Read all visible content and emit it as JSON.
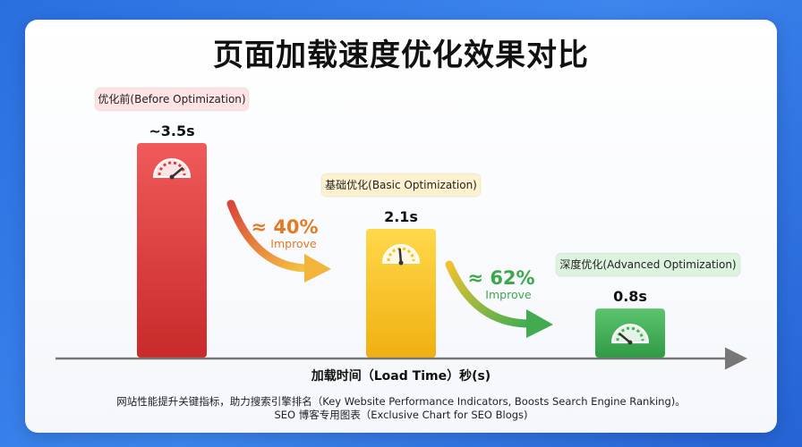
{
  "chart_data": {
    "type": "bar",
    "title": "页面加载速度优化效果对比",
    "xlabel": "加载时间（Load Time）秒(s)",
    "ylabel": "",
    "ylim": [
      0,
      3.5
    ],
    "categories": [
      "优化前(Before Optimization)",
      "基础优化(Basic Optimization)",
      "深度优化(Advanced Optimization)"
    ],
    "values": [
      3.5,
      2.1,
      0.8
    ],
    "value_labels": [
      "~3.5s",
      "2.1s",
      "0.8s"
    ],
    "annotations": [
      {
        "value": "≈ 40%",
        "text": "Improve",
        "color": "#e67a22"
      },
      {
        "value": "≈ 62%",
        "text": "Improve",
        "color": "#3da84a"
      }
    ],
    "colors": [
      "#e03b3b",
      "#f5c220",
      "#45b25a"
    ],
    "label_bg_colors": [
      "#fde3e3",
      "#fdf2cf",
      "#dcf3de"
    ]
  },
  "footer": {
    "line1": "网站性能提升关键指标，助力搜索引擎排名（Key Website Performance Indicators, Boosts Search Engine Ranking)。",
    "line2": "SEO 博客专用图表（Exclusive Chart for SEO Blogs)"
  }
}
